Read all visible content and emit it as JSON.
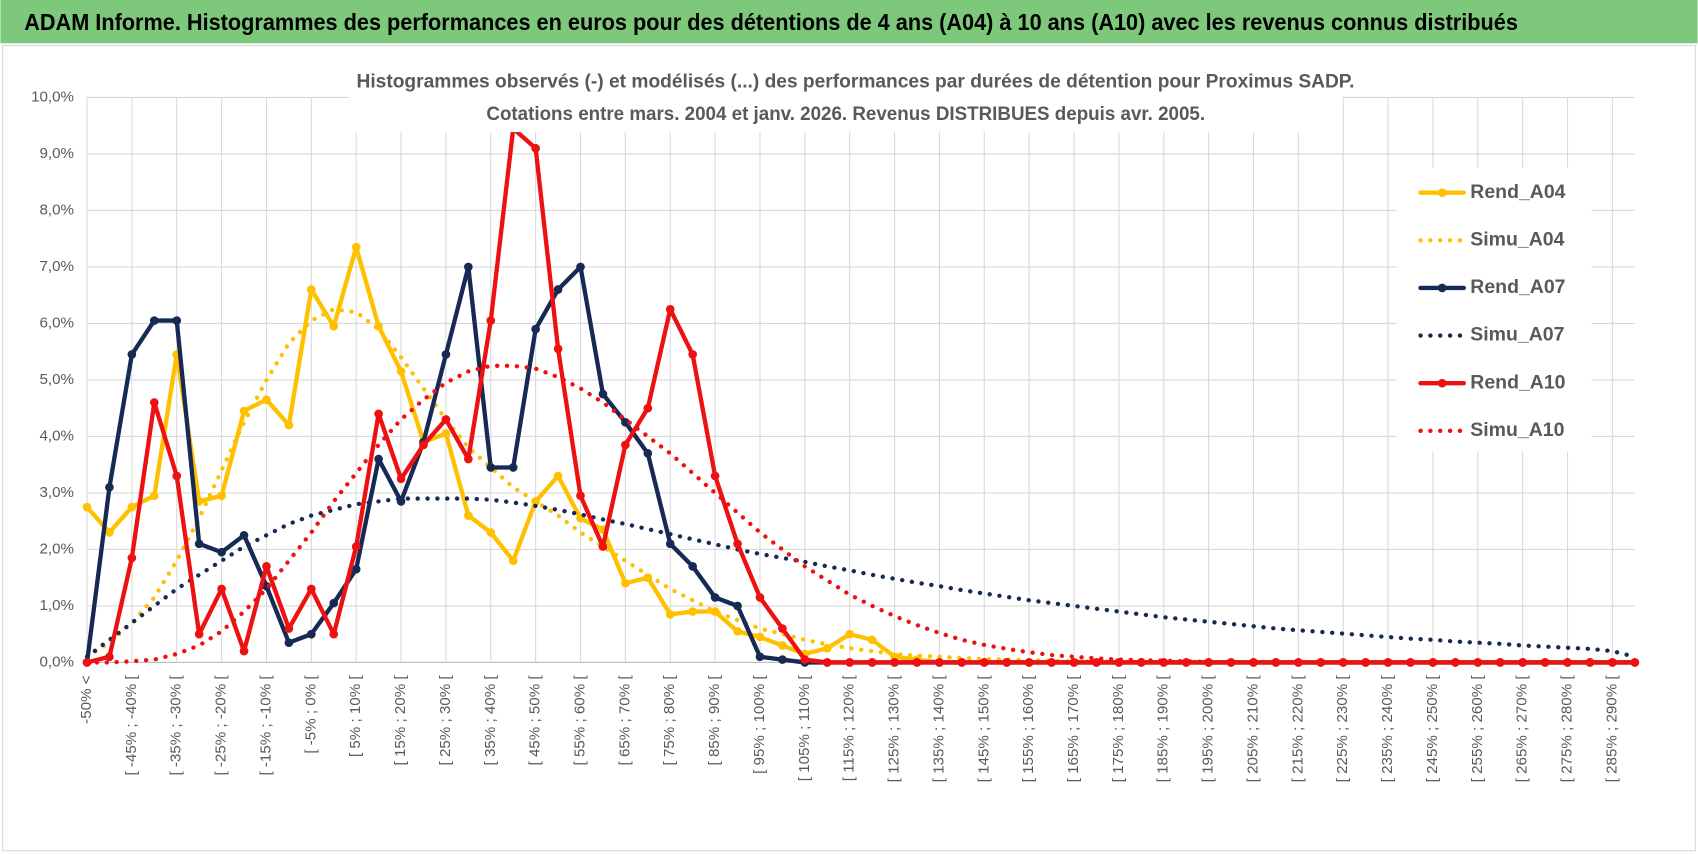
{
  "header": "ADAM Informe. Histogrammes des performances en euros pour des détentions de 4 ans (A04) à 10 ans (A10) avec les revenus connus distribués",
  "chart_data": {
    "type": "line",
    "title": "Histogrammes observés (-) et modélisés (...) des performances par durées de détention pour Proximus SADP.",
    "subtitle": "Cotations entre mars. 2004 et janv. 2026.  Revenus DISTRIBUES depuis avr. 2005.",
    "categories": [
      "-50% <",
      null,
      "[ -45% ; -40% [",
      null,
      "[ -35% ; -30% [",
      null,
      "[ -25% ; -20% [",
      null,
      "[ -15% ; -10% [",
      null,
      "[ -5% ; 0% [",
      null,
      "[ 5% ; 10% [",
      null,
      "[ 15% ; 20% [",
      null,
      "[ 25% ; 30% [",
      null,
      "[ 35% ; 40% [",
      null,
      "[ 45% ; 50% [",
      null,
      "[ 55% ; 60% [",
      null,
      "[ 65% ; 70% [",
      null,
      "[ 75% ; 80% [",
      null,
      "[ 85% ; 90% [",
      null,
      "[ 95% ; 100% [",
      null,
      "[ 105% ; 110% [",
      null,
      "[ 115% ; 120% [",
      null,
      "[ 125% ; 130% [",
      null,
      "[ 135% ; 140% [",
      null,
      "[ 145% ; 150% [",
      null,
      "[ 155% ; 160% [",
      null,
      "[ 165% ; 170% [",
      null,
      "[ 175% ; 180% [",
      null,
      "[ 185% ; 190% [",
      null,
      "[ 195% ; 200% [",
      null,
      "[ 205% ; 210% [",
      null,
      "[ 215% ; 220% [",
      null,
      "[ 225% ; 230% [",
      null,
      "[ 235% ; 240% [",
      null,
      "[ 245% ; 250% [",
      null,
      "[ 255% ; 260% [",
      null,
      "[ 265% ; 270% [",
      null,
      "[ 275% ; 280% [",
      null,
      "[ 285% ; 290% [",
      null
    ],
    "series": [
      {
        "name": "Rend_A04",
        "color": "#ffc000",
        "line_style": "solid",
        "markers": true,
        "values": [
          2.75,
          2.3,
          2.75,
          2.95,
          5.45,
          2.85,
          2.95,
          4.45,
          4.65,
          4.2,
          6.6,
          5.95,
          7.35,
          5.95,
          5.15,
          3.9,
          4.05,
          2.6,
          2.3,
          1.8,
          2.85,
          3.3,
          2.55,
          2.35,
          1.4,
          1.5,
          0.85,
          0.9,
          0.9,
          0.55,
          0.45,
          0.3,
          0.15,
          0.25,
          0.5,
          0.4,
          0.1,
          0.05,
          0,
          0,
          0,
          0,
          0,
          0,
          0,
          0,
          0,
          0,
          0,
          0,
          0,
          0,
          0,
          0,
          0,
          0,
          0,
          0,
          0,
          0,
          0,
          0,
          0,
          0,
          0,
          0,
          0,
          0,
          0,
          0
        ]
      },
      {
        "name": "Simu_A04",
        "color": "#ffc000",
        "line_style": "dotted",
        "markers": false,
        "values": [
          0.1,
          0.35,
          0.7,
          1.15,
          1.8,
          2.55,
          3.4,
          4.25,
          5.0,
          5.65,
          6.05,
          6.25,
          6.2,
          5.9,
          5.4,
          4.85,
          4.3,
          3.8,
          3.45,
          3.1,
          2.85,
          2.6,
          2.3,
          2.05,
          1.8,
          1.55,
          1.3,
          1.1,
          0.9,
          0.75,
          0.6,
          0.5,
          0.4,
          0.32,
          0.25,
          0.2,
          0.15,
          0.12,
          0.1,
          0.08,
          0.06,
          0.05,
          0.04,
          0.03,
          0.02,
          0.02,
          0.01,
          0.01,
          0,
          0,
          0,
          0,
          0,
          0,
          0,
          0,
          0,
          0,
          0,
          0,
          0,
          0,
          0,
          0,
          0,
          0,
          0,
          0,
          0,
          0
        ]
      },
      {
        "name": "Rend_A07",
        "color": "#172a55",
        "line_style": "solid",
        "markers": true,
        "values": [
          0,
          3.1,
          5.45,
          6.05,
          6.05,
          2.1,
          1.95,
          2.25,
          1.35,
          0.35,
          0.5,
          1.05,
          1.65,
          3.6,
          2.85,
          3.9,
          5.45,
          7.0,
          3.45,
          3.45,
          5.9,
          6.6,
          7.0,
          4.75,
          4.25,
          3.7,
          2.1,
          1.7,
          1.15,
          1.0,
          0.1,
          0.05,
          0,
          0,
          0,
          0,
          0,
          0,
          0,
          0,
          0,
          0,
          0,
          0,
          0,
          0,
          0,
          0,
          0,
          0,
          0,
          0,
          0,
          0,
          0,
          0,
          0,
          0,
          0,
          0,
          0,
          0,
          0,
          0,
          0,
          0,
          0,
          0,
          0,
          0
        ]
      },
      {
        "name": "Simu_A07",
        "color": "#172a55",
        "line_style": "dotted",
        "markers": false,
        "values": [
          0.1,
          0.4,
          0.7,
          1.0,
          1.3,
          1.55,
          1.8,
          2.05,
          2.25,
          2.45,
          2.6,
          2.7,
          2.8,
          2.85,
          2.9,
          2.9,
          2.9,
          2.9,
          2.88,
          2.83,
          2.77,
          2.7,
          2.62,
          2.53,
          2.45,
          2.36,
          2.27,
          2.18,
          2.09,
          2.0,
          1.92,
          1.85,
          1.78,
          1.7,
          1.63,
          1.55,
          1.48,
          1.41,
          1.35,
          1.28,
          1.22,
          1.16,
          1.1,
          1.05,
          1.0,
          0.95,
          0.9,
          0.85,
          0.8,
          0.76,
          0.72,
          0.68,
          0.64,
          0.6,
          0.57,
          0.54,
          0.51,
          0.48,
          0.45,
          0.42,
          0.4,
          0.37,
          0.35,
          0.33,
          0.3,
          0.28,
          0.26,
          0.24,
          0.2,
          0.1
        ]
      },
      {
        "name": "Rend_A10",
        "color": "#ee1111",
        "line_style": "solid",
        "markers": true,
        "values": [
          0,
          0.1,
          1.85,
          4.6,
          3.3,
          0.5,
          1.3,
          0.2,
          1.7,
          0.6,
          1.3,
          0.5,
          2.05,
          4.4,
          3.25,
          3.85,
          4.3,
          3.6,
          6.05,
          9.45,
          9.1,
          5.55,
          2.95,
          2.05,
          3.85,
          4.5,
          6.25,
          5.45,
          3.3,
          2.1,
          1.15,
          0.6,
          0.05,
          0,
          0,
          0,
          0,
          0,
          0,
          0,
          0,
          0,
          0,
          0,
          0,
          0,
          0,
          0,
          0,
          0,
          0,
          0,
          0,
          0,
          0,
          0,
          0,
          0,
          0,
          0,
          0,
          0,
          0,
          0,
          0,
          0,
          0,
          0,
          0,
          0
        ]
      },
      {
        "name": "Simu_A10",
        "color": "#ee1111",
        "line_style": "dotted",
        "markers": false,
        "values": [
          0,
          0,
          0.02,
          0.05,
          0.15,
          0.3,
          0.55,
          0.9,
          1.3,
          1.8,
          2.3,
          2.85,
          3.35,
          3.85,
          4.3,
          4.65,
          4.95,
          5.15,
          5.25,
          5.25,
          5.2,
          5.05,
          4.85,
          4.6,
          4.3,
          4.0,
          3.7,
          3.35,
          3.0,
          2.65,
          2.3,
          2.0,
          1.7,
          1.45,
          1.2,
          1.0,
          0.82,
          0.66,
          0.52,
          0.4,
          0.31,
          0.24,
          0.18,
          0.13,
          0.1,
          0.07,
          0.05,
          0.04,
          0.03,
          0.02,
          0.01,
          0,
          0,
          0,
          0,
          0,
          0,
          0,
          0,
          0,
          0,
          0,
          0,
          0,
          0,
          0,
          0,
          0,
          0,
          0
        ]
      }
    ],
    "ylim": [
      0,
      10
    ],
    "yticks": [
      {
        "value": 0,
        "label": "0,0%"
      },
      {
        "value": 1,
        "label": "1,0%"
      },
      {
        "value": 2,
        "label": "2,0%"
      },
      {
        "value": 3,
        "label": "3,0%"
      },
      {
        "value": 4,
        "label": "4,0%"
      },
      {
        "value": 5,
        "label": "5,0%"
      },
      {
        "value": 6,
        "label": "6,0%"
      },
      {
        "value": 7,
        "label": "7,0%"
      },
      {
        "value": 8,
        "label": "8,0%"
      },
      {
        "value": 9,
        "label": "9,0%"
      },
      {
        "value": 10,
        "label": "10,0%"
      }
    ],
    "grid": true,
    "legend": "right"
  }
}
